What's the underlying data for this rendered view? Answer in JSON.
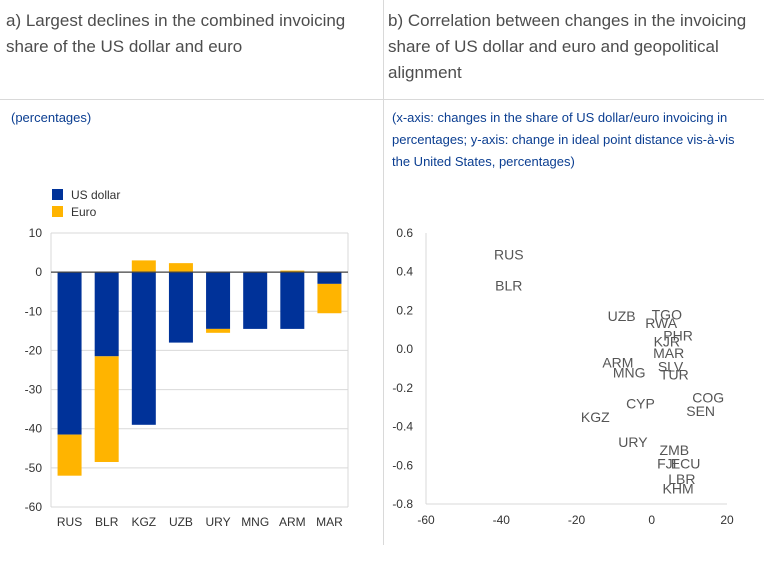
{
  "panel_a": {
    "title": "a) Largest declines in the combined invoicing share of the US dollar and euro",
    "subtitle": "(percentages)"
  },
  "panel_b": {
    "title": "b) Correlation between changes in the invoicing share of US dollar and euro and geopolitical alignment",
    "subtitle": "(x-axis: changes in the share of US dollar/euro invoicing in percentages; y-axis: change in ideal point distance vis-à-vis the United States, percentages)"
  },
  "colors": {
    "usd": "#003299",
    "euro": "#ffb400",
    "grid": "#d9d9d9",
    "axis": "#333333",
    "label": "#555555"
  },
  "chart_data": [
    {
      "type": "bar",
      "stacked": true,
      "categories": [
        "RUS",
        "BLR",
        "KGZ",
        "UZB",
        "URY",
        "MNG",
        "ARM",
        "MAR"
      ],
      "series": [
        {
          "name": "US dollar",
          "values": [
            -41.5,
            -21.5,
            -39,
            -18,
            -14.5,
            -14.5,
            -14.5,
            -3
          ]
        },
        {
          "name": "Euro",
          "values": [
            -10.5,
            -27,
            3,
            2.3,
            -1,
            0,
            0.4,
            -7.5
          ]
        }
      ],
      "ylim": [
        -60,
        10
      ],
      "yticks": [
        10,
        0,
        -10,
        -20,
        -30,
        -40,
        -50,
        -60
      ],
      "grid": true,
      "legend": "top-left"
    },
    {
      "type": "scatter",
      "xlim": [
        -60,
        20
      ],
      "ylim": [
        -0.8,
        0.6
      ],
      "xticks": [
        -60,
        -40,
        -20,
        0,
        20
      ],
      "yticks": [
        "0.6",
        "0.4",
        "0.2",
        "0.0",
        "-0.2",
        "-0.4",
        "-0.6",
        "-0.8"
      ],
      "grid": false,
      "points": [
        {
          "label": "RUS",
          "x": -38,
          "y": 0.49
        },
        {
          "label": "BLR",
          "x": -38,
          "y": 0.33
        },
        {
          "label": "UZB",
          "x": -8,
          "y": 0.17
        },
        {
          "label": "TGO",
          "x": 4,
          "y": 0.18
        },
        {
          "label": "RWA",
          "x": 2.5,
          "y": 0.135
        },
        {
          "label": "PHR",
          "x": 7,
          "y": 0.07
        },
        {
          "label": "KJR",
          "x": 4,
          "y": 0.04
        },
        {
          "label": "MAR",
          "x": 4.5,
          "y": -0.02
        },
        {
          "label": "ARM",
          "x": -9,
          "y": -0.07
        },
        {
          "label": "MNG",
          "x": -6,
          "y": -0.12
        },
        {
          "label": "SLV",
          "x": 5,
          "y": -0.09
        },
        {
          "label": "TUR",
          "x": 6,
          "y": -0.13
        },
        {
          "label": "COG",
          "x": 15,
          "y": -0.25
        },
        {
          "label": "SEN",
          "x": 13,
          "y": -0.32
        },
        {
          "label": "CYP",
          "x": -3,
          "y": -0.28
        },
        {
          "label": "KGZ",
          "x": -15,
          "y": -0.35
        },
        {
          "label": "URY",
          "x": -5,
          "y": -0.48
        },
        {
          "label": "ZMB",
          "x": 6,
          "y": -0.52
        },
        {
          "label": "FJI",
          "x": 4,
          "y": -0.59
        },
        {
          "label": "ECU",
          "x": 9,
          "y": -0.59
        },
        {
          "label": "LBR",
          "x": 8,
          "y": -0.67
        },
        {
          "label": "KHM",
          "x": 7,
          "y": -0.72
        }
      ]
    }
  ]
}
